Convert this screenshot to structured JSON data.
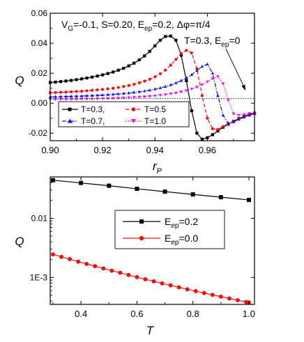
{
  "colors": {
    "black": "#000000",
    "red": "#ee1111",
    "blue": "#1111ee",
    "magenta": "#ee11ee"
  },
  "chart_data": [
    {
      "type": "line",
      "title": "",
      "xlabel": "r",
      "xlabel_sub": "P",
      "ylabel": "Q",
      "xlim": [
        0.9,
        0.978
      ],
      "ylim": [
        -0.025,
        0.06
      ],
      "xticks": [
        0.9,
        0.92,
        0.94,
        0.96
      ],
      "xtick_labels": [
        "0.90",
        "0.92",
        "0.94",
        "0.96"
      ],
      "yticks": [
        -0.02,
        0.0,
        0.02,
        0.04,
        0.06
      ],
      "ytick_labels": [
        "-0.02",
        "0.00",
        "0.02",
        "0.04",
        "0.06"
      ],
      "params_line": {
        "t1": "V",
        "s1": "G",
        "t2": "=-0.1, S=0.20, E",
        "s2": "ep",
        "t3": "=0.2, Δφ=π/4"
      },
      "annotation": {
        "t1": "T=0.3, E",
        "s1": "ep",
        "t2": "=0"
      },
      "legend_position": "bottom-left",
      "series": [
        {
          "name": "T=0.3,",
          "color": "black",
          "marker": "square",
          "dash": "solid",
          "x": [
            0.9,
            0.902,
            0.904,
            0.906,
            0.908,
            0.91,
            0.912,
            0.914,
            0.916,
            0.918,
            0.92,
            0.922,
            0.924,
            0.926,
            0.928,
            0.93,
            0.932,
            0.934,
            0.936,
            0.938,
            0.94,
            0.942,
            0.944,
            0.946,
            0.948,
            0.95,
            0.952,
            0.954,
            0.956,
            0.958,
            0.96,
            0.962,
            0.964,
            0.966,
            0.968,
            0.97,
            0.972,
            0.974,
            0.976,
            0.978
          ],
          "y": [
            0.0138,
            0.0141,
            0.0144,
            0.0148,
            0.0152,
            0.0157,
            0.0162,
            0.0168,
            0.0174,
            0.0181,
            0.0189,
            0.0198,
            0.0208,
            0.022,
            0.0233,
            0.0249,
            0.0267,
            0.0289,
            0.0315,
            0.0346,
            0.0383,
            0.042,
            0.0445,
            0.0448,
            0.042,
            0.032,
            0.015,
            -0.005,
            -0.02,
            -0.024,
            -0.023,
            -0.021,
            -0.0185,
            -0.016,
            -0.014,
            -0.012,
            -0.0103,
            -0.0088,
            -0.0075,
            -0.0065
          ]
        },
        {
          "name": "T=0.5",
          "color": "red",
          "marker": "circle",
          "dash": "dashed",
          "x": [
            0.9,
            0.902,
            0.904,
            0.906,
            0.908,
            0.91,
            0.912,
            0.914,
            0.916,
            0.918,
            0.92,
            0.922,
            0.924,
            0.926,
            0.928,
            0.93,
            0.932,
            0.934,
            0.936,
            0.938,
            0.94,
            0.942,
            0.944,
            0.946,
            0.948,
            0.95,
            0.952,
            0.954,
            0.956,
            0.958,
            0.96,
            0.962,
            0.964,
            0.966,
            0.968,
            0.97,
            0.972,
            0.974,
            0.976,
            0.978
          ],
          "y": [
            0.007,
            0.0071,
            0.0073,
            0.0074,
            0.0076,
            0.0078,
            0.008,
            0.0083,
            0.0086,
            0.0089,
            0.0092,
            0.0096,
            0.01,
            0.0105,
            0.0111,
            0.0118,
            0.0126,
            0.0136,
            0.0147,
            0.016,
            0.0176,
            0.0196,
            0.0221,
            0.0254,
            0.0292,
            0.0332,
            0.0352,
            0.0335,
            0.023,
            0.005,
            -0.01,
            -0.017,
            -0.0175,
            -0.0155,
            -0.0137,
            -0.0121,
            -0.0106,
            -0.0092,
            -0.008,
            -0.007
          ]
        },
        {
          "name": "T=0.7,",
          "color": "blue",
          "marker": "triangle-up",
          "dash": "dashdot",
          "x": [
            0.9,
            0.902,
            0.904,
            0.906,
            0.908,
            0.91,
            0.912,
            0.914,
            0.916,
            0.918,
            0.92,
            0.922,
            0.924,
            0.926,
            0.928,
            0.93,
            0.932,
            0.934,
            0.936,
            0.938,
            0.94,
            0.942,
            0.944,
            0.946,
            0.948,
            0.95,
            0.952,
            0.954,
            0.956,
            0.958,
            0.96,
            0.962,
            0.964,
            0.966,
            0.968,
            0.97,
            0.972,
            0.974,
            0.976,
            0.978
          ],
          "y": [
            0.0042,
            0.0043,
            0.0044,
            0.0045,
            0.0046,
            0.0047,
            0.0048,
            0.005,
            0.0051,
            0.0053,
            0.0055,
            0.0057,
            0.0059,
            0.0062,
            0.0065,
            0.0068,
            0.0072,
            0.0076,
            0.0081,
            0.0087,
            0.0094,
            0.0102,
            0.0111,
            0.0122,
            0.0135,
            0.015,
            0.0168,
            0.019,
            0.0217,
            0.0245,
            0.026,
            0.02,
            0.005,
            -0.008,
            -0.0135,
            -0.0125,
            -0.0108,
            -0.0093,
            -0.008,
            -0.007
          ]
        },
        {
          "name": "T=1.0",
          "color": "magenta",
          "marker": "triangle-down",
          "dash": "dotted",
          "x": [
            0.9,
            0.902,
            0.904,
            0.906,
            0.908,
            0.91,
            0.912,
            0.914,
            0.916,
            0.918,
            0.92,
            0.922,
            0.924,
            0.926,
            0.928,
            0.93,
            0.932,
            0.934,
            0.936,
            0.938,
            0.94,
            0.942,
            0.944,
            0.946,
            0.948,
            0.95,
            0.952,
            0.954,
            0.956,
            0.958,
            0.96,
            0.962,
            0.964,
            0.966,
            0.968,
            0.97,
            0.972,
            0.974,
            0.976,
            0.978
          ],
          "y": [
            0.0025,
            0.0025,
            0.0026,
            0.0026,
            0.0027,
            0.0027,
            0.0028,
            0.0029,
            0.0029,
            0.003,
            0.0031,
            0.0032,
            0.0033,
            0.0035,
            0.0036,
            0.0038,
            0.004,
            0.0042,
            0.0044,
            0.0047,
            0.005,
            0.0054,
            0.0058,
            0.0063,
            0.0069,
            0.0076,
            0.0085,
            0.0095,
            0.0108,
            0.0124,
            0.0143,
            0.0165,
            0.0178,
            0.013,
            0.002,
            -0.007,
            -0.008,
            -0.0075,
            -0.0068,
            -0.0062
          ]
        },
        {
          "name": "",
          "color": "black",
          "marker": "none",
          "dash": "dotted",
          "x": [
            0.9,
            0.978
          ],
          "y": [
            0.0032,
            0.0032
          ]
        }
      ]
    },
    {
      "type": "line",
      "title": "",
      "xlabel": "T",
      "ylabel": "Q",
      "yscale": "log",
      "xlim": [
        0.29,
        1.02
      ],
      "ylim": [
        0.00035,
        0.05
      ],
      "xticks": [
        0.4,
        0.6,
        0.8,
        1.0
      ],
      "xtick_labels": [
        "0.4",
        "0.6",
        "0.8",
        "1.0"
      ],
      "yticks": [
        0.001,
        0.01
      ],
      "ytick_labels": [
        "1E-3",
        "0.01"
      ],
      "legend_position": "center-right",
      "series": [
        {
          "name_main": "E",
          "name_sub": "ep",
          "name_tail": "=0.2",
          "color": "black",
          "marker": "square",
          "dash": "solid",
          "x": [
            0.3,
            0.4,
            0.5,
            0.6,
            0.7,
            0.8,
            0.9,
            1.0
          ],
          "y": [
            0.044,
            0.0395,
            0.0355,
            0.0315,
            0.0282,
            0.0253,
            0.0227,
            0.0204
          ]
        },
        {
          "name_main": "E",
          "name_sub": "ep",
          "name_tail": "=0.0",
          "color": "red",
          "marker": "circle",
          "dash": "solid",
          "x": [
            0.3,
            0.33,
            0.36,
            0.39,
            0.42,
            0.45,
            0.48,
            0.51,
            0.54,
            0.57,
            0.6,
            0.63,
            0.66,
            0.69,
            0.72,
            0.75,
            0.78,
            0.81,
            0.84,
            0.87,
            0.9,
            0.93,
            0.96,
            0.99,
            1.0
          ],
          "y": [
            0.00245,
            0.00223,
            0.00203,
            0.00185,
            0.00169,
            0.00155,
            0.00142,
            0.0013,
            0.0012,
            0.0011,
            0.00101,
            0.00093,
            0.000858,
            0.000793,
            0.000734,
            0.00068,
            0.00063,
            0.000585,
            0.000544,
            0.000507,
            0.000473,
            0.000441,
            0.000412,
            0.000385,
            0.000377
          ]
        }
      ]
    }
  ]
}
